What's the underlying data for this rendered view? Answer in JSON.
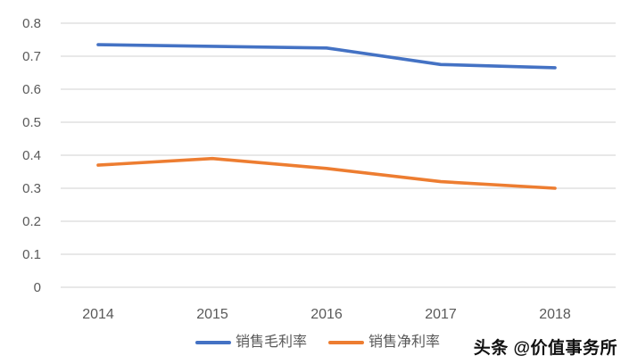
{
  "chart_data": {
    "type": "line",
    "title": "",
    "categories": [
      "2014",
      "2015",
      "2016",
      "2017",
      "2018"
    ],
    "series": [
      {
        "name": "销售毛利率",
        "color": "#4472C4",
        "values": [
          0.735,
          0.73,
          0.725,
          0.675,
          0.665
        ]
      },
      {
        "name": "销售净利率",
        "color": "#ED7D31",
        "values": [
          0.37,
          0.39,
          0.36,
          0.32,
          0.3
        ]
      }
    ],
    "xlabel": "",
    "ylabel": "",
    "ylim": [
      0,
      0.8
    ],
    "yticks": [
      "0",
      "0.1",
      "0.2",
      "0.3",
      "0.4",
      "0.5",
      "0.6",
      "0.7",
      "0.8"
    ],
    "grid": "horizontal",
    "legend_position": "bottom"
  },
  "legend": {
    "items": [
      {
        "label": "销售毛利率",
        "color": "#4472C4"
      },
      {
        "label": "销售净利率",
        "color": "#ED7D31"
      }
    ]
  },
  "watermark": {
    "text": "头条 @价值事务所"
  },
  "colors": {
    "gridline": "#D9D9D9",
    "axis_text": "#595959",
    "background": "#FFFFFF",
    "series_blue": "#4472C4",
    "series_orange": "#ED7D31"
  }
}
